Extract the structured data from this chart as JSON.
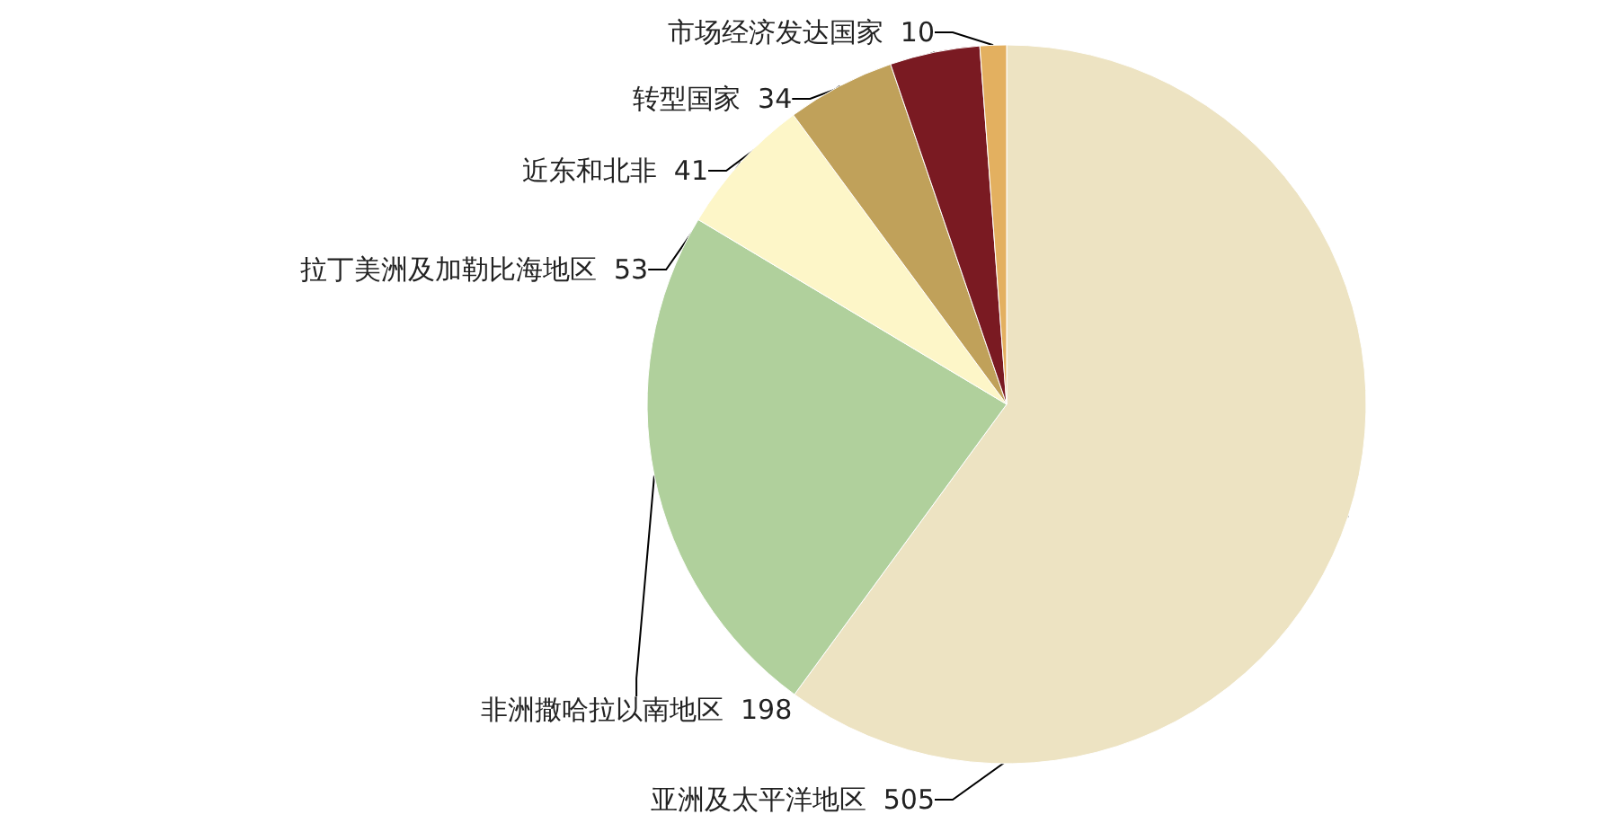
{
  "chart_data": {
    "type": "pie",
    "categories": [
      "亚洲及太平洋地区",
      "非洲撒哈拉以南地区",
      "拉丁美洲及加勒比海地区",
      "近东和北非",
      "转型国家",
      "市场经济发达国家"
    ],
    "values": [
      505,
      198,
      53,
      41,
      34,
      10
    ],
    "colors": [
      "#ede3c2",
      "#b0d09c",
      "#fdf6c8",
      "#c0a15a",
      "#7a1a22",
      "#e3b060"
    ],
    "data_labels": true,
    "legend": false
  }
}
